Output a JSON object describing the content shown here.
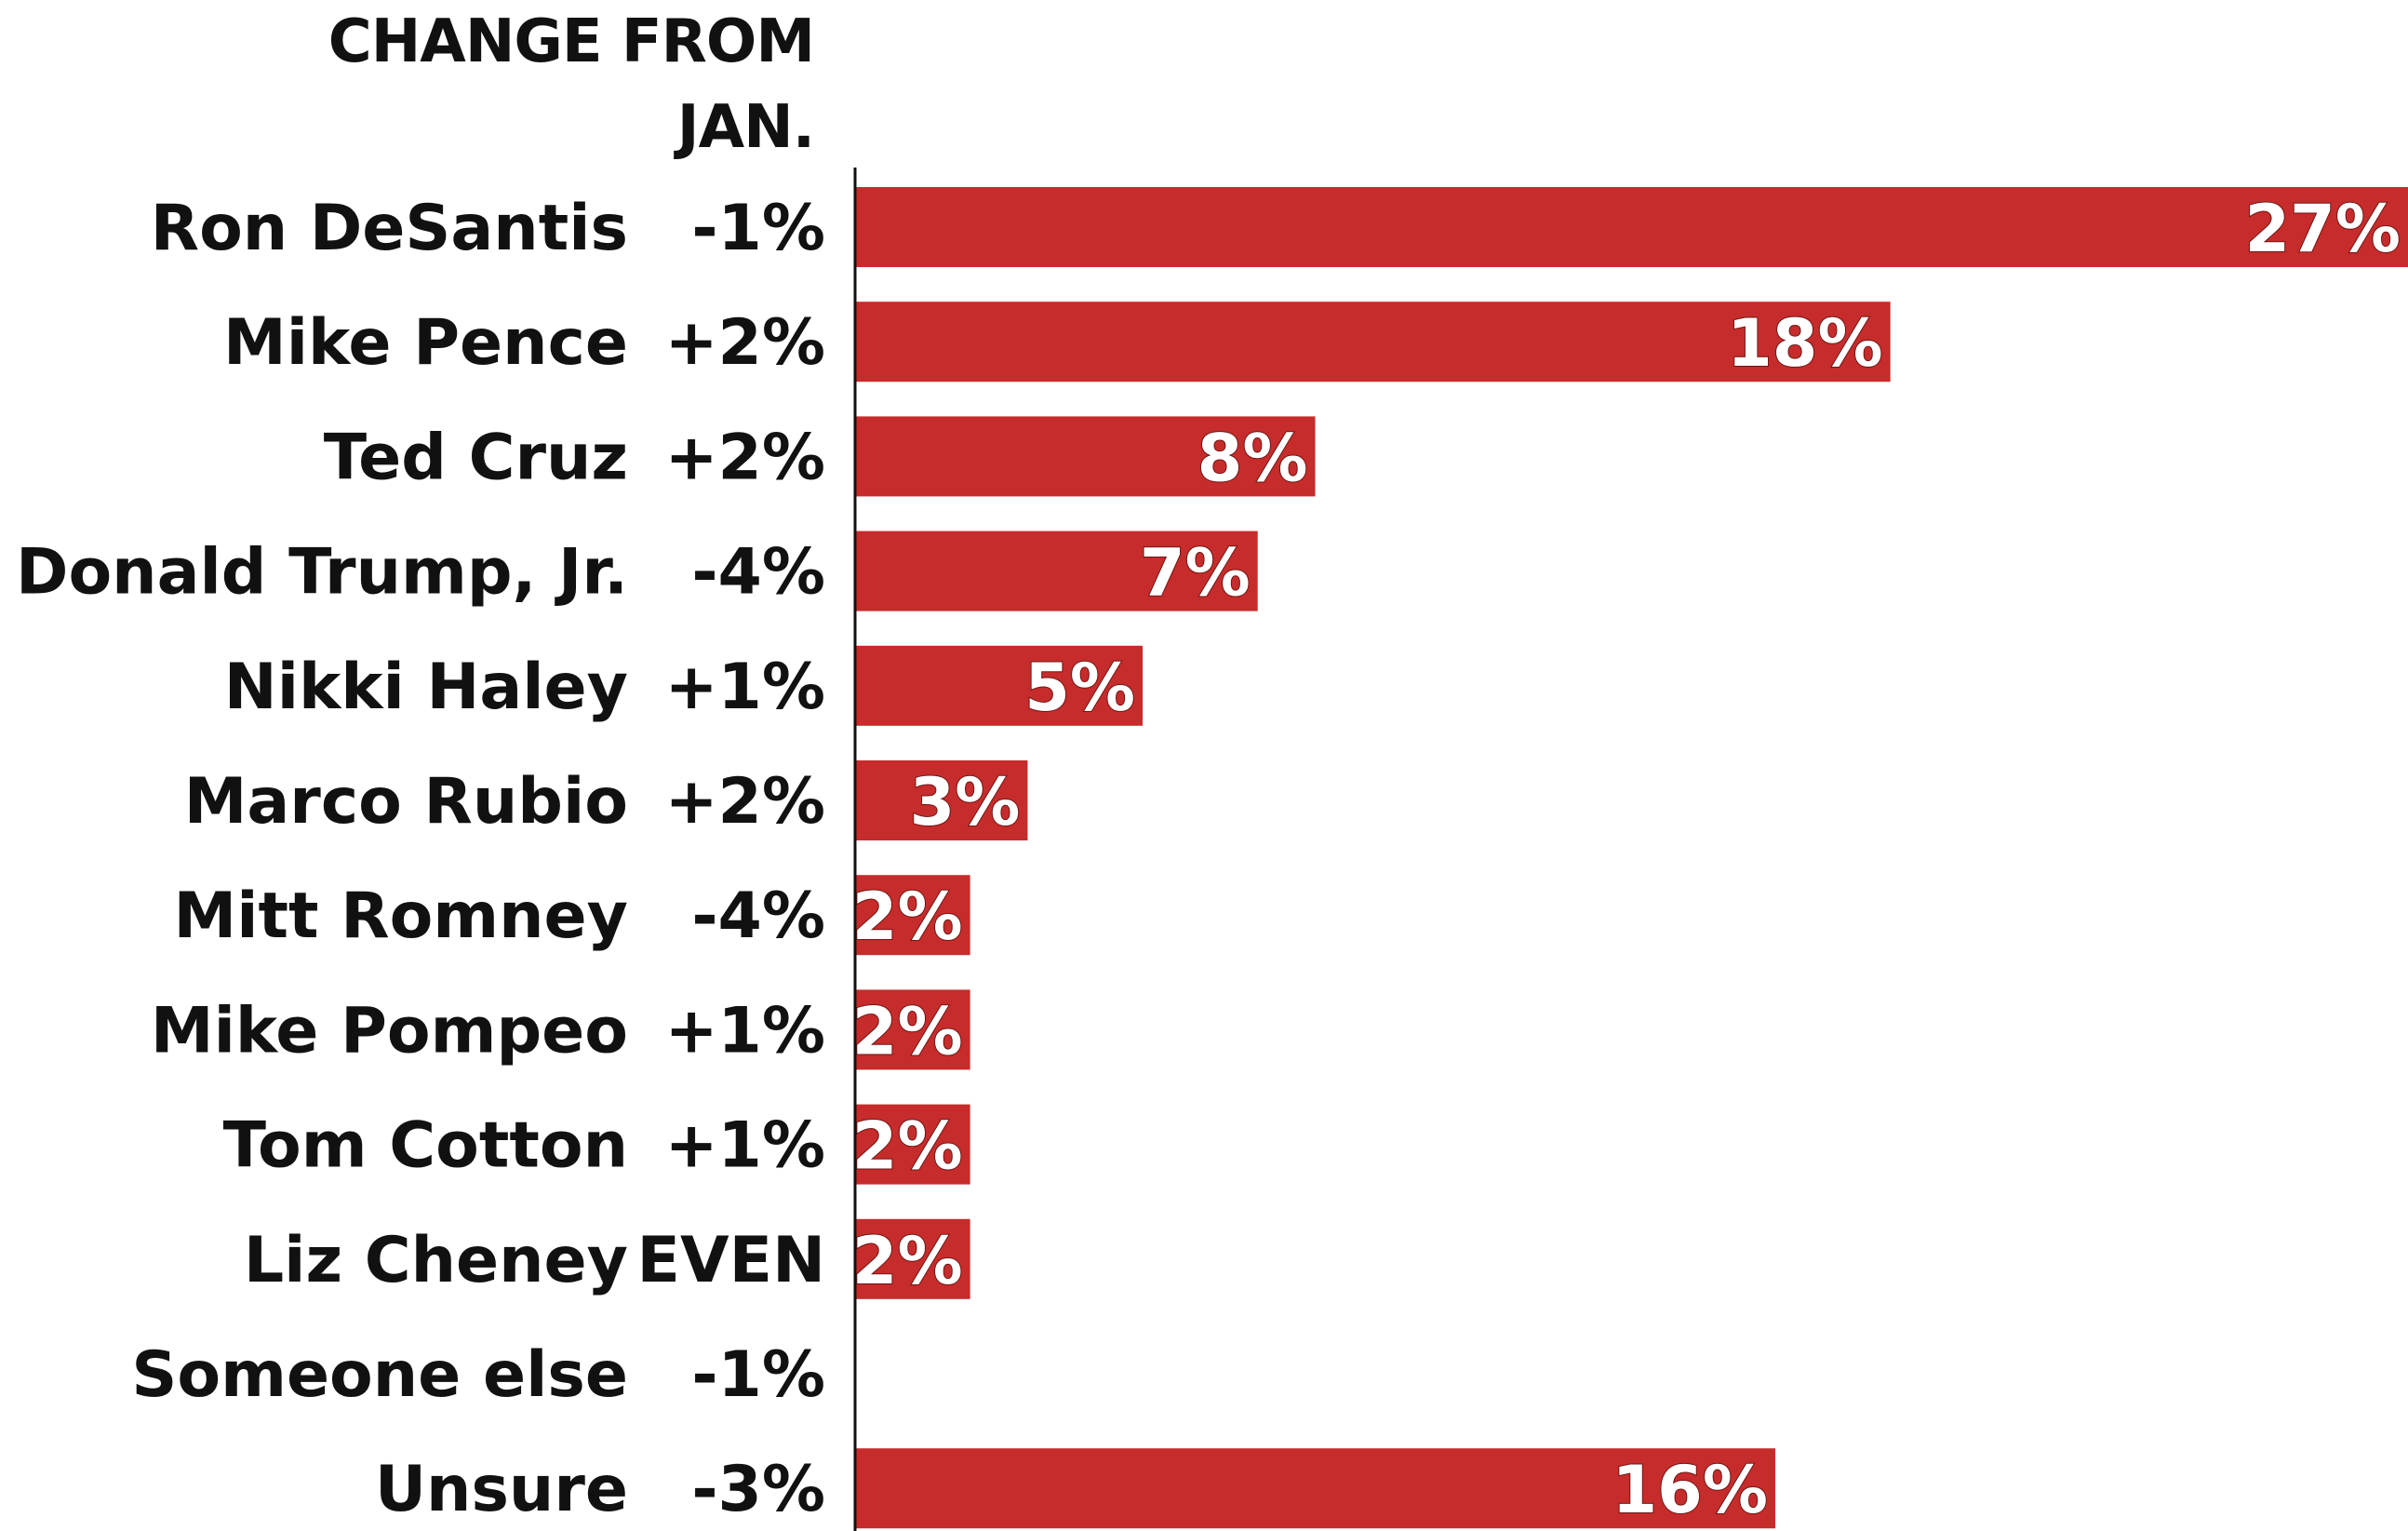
{
  "colors": {
    "bar": "#c62c2b",
    "text": "#111111",
    "value_label": "#ffffff",
    "axis": "#111111"
  },
  "chart_data": {
    "type": "bar",
    "orientation": "horizontal",
    "change_header": [
      "CHANGE FROM",
      "JAN."
    ],
    "categories": [
      "Ron DeSantis",
      "Mike Pence",
      "Ted Cruz",
      "Donald Trump, Jr.",
      "Nikki Haley",
      "Marco Rubio",
      "Mitt Romney",
      "Mike Pompeo",
      "Tom Cotton",
      "Liz Cheney",
      "Someone else",
      "Unsure"
    ],
    "values": [
      27,
      18,
      8,
      7,
      5,
      3,
      2,
      2,
      2,
      2,
      null,
      16
    ],
    "value_labels": [
      "27%",
      "18%",
      "8%",
      "7%",
      "5%",
      "3%",
      "2%",
      "2%",
      "2%",
      "2%",
      "",
      "16%"
    ],
    "change_from_jan": [
      "-1%",
      "+2%",
      "+2%",
      "-4%",
      "+1%",
      "+2%",
      "-4%",
      "+1%",
      "+1%",
      "EVEN",
      "-1%",
      "-3%"
    ],
    "xlim": [
      0,
      27
    ],
    "grid": false,
    "legend": "none"
  }
}
